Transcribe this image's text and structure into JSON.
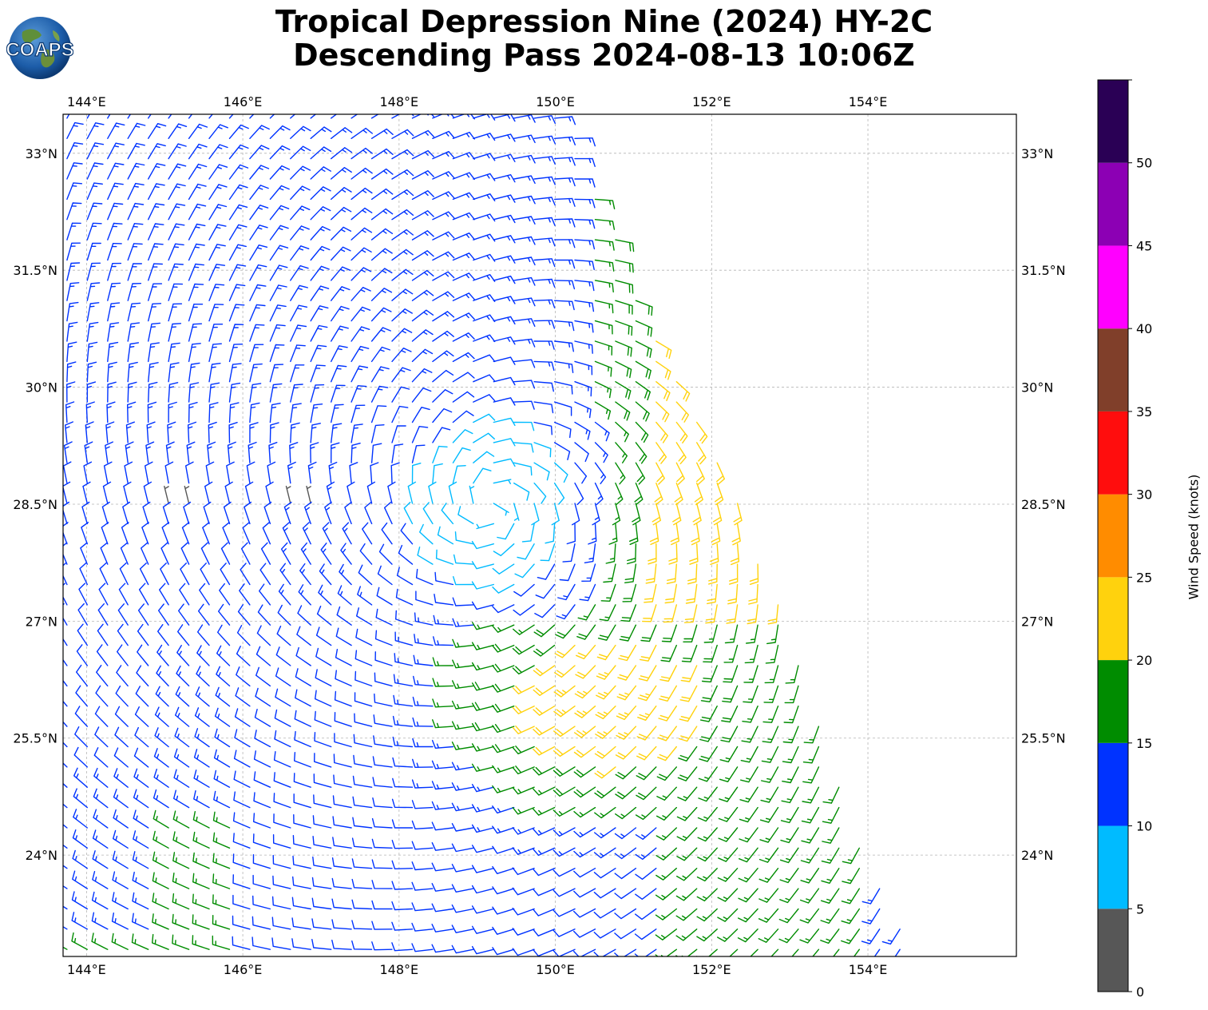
{
  "title": {
    "line1": "Tropical Depression Nine (2024) HY-2C",
    "line2": "Descending Pass 2024-08-13 10:06Z"
  },
  "logo": {
    "text": "COAPS",
    "icon": "globe-logo-icon"
  },
  "map": {
    "lon_range": [
      143.7,
      155.9
    ],
    "lat_range": [
      22.7,
      33.5
    ],
    "lon_ticks": [
      144,
      146,
      148,
      150,
      152,
      154
    ],
    "lon_tick_labels": [
      "144°E",
      "146°E",
      "148°E",
      "150°E",
      "152°E",
      "154°E"
    ],
    "lat_ticks": [
      24,
      25.5,
      27,
      28.5,
      30,
      31.5,
      33
    ],
    "lat_tick_labels": [
      "24°N",
      "25.5°N",
      "27°N",
      "28.5°N",
      "30°N",
      "31.5°N",
      "33°N"
    ],
    "grid": true,
    "cyclone_center": {
      "lon": 149.2,
      "lat": 28.5
    },
    "swath_east_edge": [
      [
        150.2,
        33.4
      ],
      [
        151.0,
        31.4
      ],
      [
        151.6,
        30.1
      ],
      [
        152.2,
        29.0
      ],
      [
        152.7,
        27.7
      ],
      [
        153.1,
        26.7
      ],
      [
        153.5,
        25.4
      ],
      [
        154.0,
        24.0
      ],
      [
        154.6,
        22.7
      ]
    ]
  },
  "colorbar": {
    "label": "Wind Speed (knots)",
    "min": 0,
    "max": 55,
    "tick_values": [
      0,
      5,
      10,
      15,
      20,
      25,
      30,
      35,
      40,
      45,
      50
    ],
    "tick_labels": [
      "0",
      "5",
      "10",
      "15",
      "20",
      "25",
      "30",
      "35",
      "40",
      "45",
      "50"
    ],
    "bins": [
      {
        "from": 0,
        "to": 5,
        "color": "#575757"
      },
      {
        "from": 5,
        "to": 10,
        "color": "#00bbff"
      },
      {
        "from": 10,
        "to": 15,
        "color": "#0033ff"
      },
      {
        "from": 15,
        "to": 20,
        "color": "#008c00"
      },
      {
        "from": 20,
        "to": 25,
        "color": "#ffd20d"
      },
      {
        "from": 25,
        "to": 30,
        "color": "#ff8c00"
      },
      {
        "from": 30,
        "to": 35,
        "color": "#ff0d0d"
      },
      {
        "from": 35,
        "to": 40,
        "color": "#803f2a"
      },
      {
        "from": 40,
        "to": 45,
        "color": "#ff00ff"
      },
      {
        "from": 45,
        "to": 50,
        "color": "#8c00b4"
      },
      {
        "from": 50,
        "to": 55,
        "color": "#2a0055"
      }
    ]
  },
  "barb_colors": {
    "calm": "#575757",
    "light": "#00bbff",
    "moderate": "#0033ff",
    "fresh": "#008c00",
    "strong": "#ffd20d",
    "gale": "#ff8c00",
    "storm": "#ff0d0d"
  }
}
